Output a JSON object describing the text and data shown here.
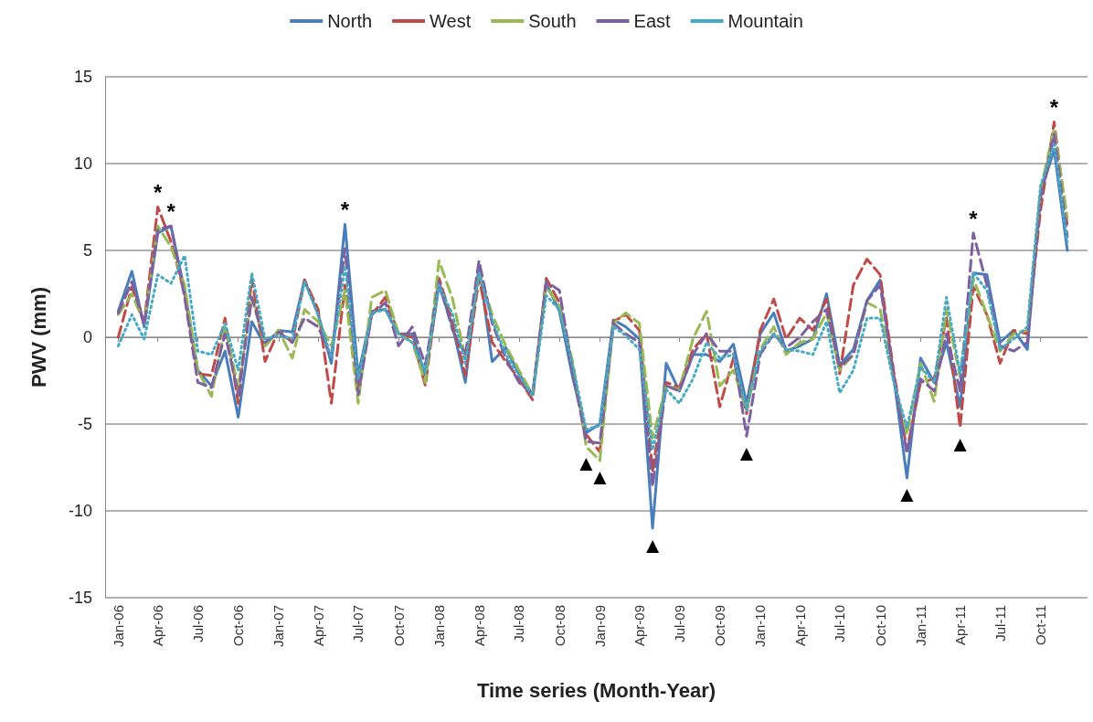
{
  "chart_data": {
    "type": "line",
    "xlabel": "Time series (Month-Year)",
    "ylabel": "PWV (mm)",
    "x": [
      "2006-01",
      "2006-02",
      "2006-03",
      "2006-04",
      "2006-05",
      "2006-06",
      "2006-07",
      "2006-08",
      "2006-09",
      "2006-10",
      "2006-11",
      "2006-12",
      "2007-01",
      "2007-02",
      "2007-03",
      "2007-04",
      "2007-05",
      "2007-06",
      "2007-07",
      "2007-08",
      "2007-09",
      "2007-10",
      "2007-11",
      "2007-12",
      "2008-01",
      "2008-02",
      "2008-03",
      "2008-04",
      "2008-05",
      "2008-06",
      "2008-07",
      "2008-08",
      "2008-09",
      "2008-10",
      "2008-11",
      "2008-12",
      "2009-01",
      "2009-02",
      "2009-03",
      "2009-04",
      "2009-05",
      "2009-06",
      "2009-07",
      "2009-08",
      "2009-09",
      "2009-10",
      "2009-11",
      "2009-12",
      "2010-01",
      "2010-02",
      "2010-03",
      "2010-04",
      "2010-05",
      "2010-06",
      "2010-07",
      "2010-08",
      "2010-09",
      "2010-10",
      "2010-11",
      "2010-12",
      "2011-01",
      "2011-02",
      "2011-03",
      "2011-04",
      "2011-05",
      "2011-06",
      "2011-07",
      "2011-08",
      "2011-09",
      "2011-10",
      "2011-11",
      "2011-12"
    ],
    "series": [
      {
        "name": "North",
        "color": "#4a7ebb",
        "line_style": "solid",
        "values": [
          1.5,
          3.8,
          0.6,
          6.0,
          6.4,
          2.7,
          -1.9,
          -2.8,
          -0.8,
          -4.6,
          0.9,
          -0.5,
          0.4,
          0.3,
          3.3,
          1.3,
          -1.5,
          6.5,
          -2.2,
          1.5,
          1.6,
          0.2,
          0.2,
          -2.2,
          3.0,
          0.6,
          -2.6,
          4.1,
          -1.4,
          -0.6,
          -2.1,
          -3.3,
          3.1,
          1.5,
          -2.4,
          -5.5,
          -5.0,
          1.0,
          0.6,
          -0.1,
          -11.0,
          -1.5,
          -3.1,
          -1.0,
          -1.0,
          -1.4,
          -0.4,
          -3.8,
          0.2,
          1.4,
          -0.8,
          -0.5,
          -0.1,
          2.5,
          -1.6,
          -0.7,
          2.1,
          3.3,
          -2.3,
          -8.1,
          -1.2,
          -2.6,
          -0.3,
          -4.0,
          3.7,
          3.6,
          -0.3,
          0.4,
          -0.7,
          8.3,
          10.8,
          5.0
        ]
      },
      {
        "name": "West",
        "color": "#be4b48",
        "line_style": "dashed",
        "values": [
          0.0,
          2.9,
          0.9,
          7.5,
          5.5,
          2.5,
          -2.1,
          -2.2,
          1.1,
          -3.8,
          3.4,
          -1.4,
          0.4,
          -0.3,
          3.3,
          1.6,
          -3.8,
          3.0,
          -2.9,
          1.3,
          2.3,
          0.2,
          0.0,
          -2.8,
          3.4,
          0.9,
          -2.2,
          3.4,
          -0.3,
          -1.4,
          -2.4,
          -3.6,
          3.4,
          2.0,
          -1.9,
          -5.6,
          -6.6,
          0.9,
          1.3,
          0.4,
          -7.7,
          -2.6,
          -2.9,
          -0.7,
          0.2,
          -4.0,
          -1.2,
          -4.4,
          0.4,
          2.2,
          -0.1,
          1.1,
          0.4,
          2.2,
          -2.1,
          3.0,
          4.5,
          3.6,
          -2.0,
          -6.5,
          -2.6,
          -2.4,
          1.1,
          -5.2,
          2.9,
          1.3,
          -1.5,
          0.4,
          0.2,
          7.3,
          12.4,
          6.4
        ]
      },
      {
        "name": "South",
        "color": "#98b954",
        "line_style": "dashed",
        "values": [
          1.3,
          2.5,
          0.8,
          6.4,
          5.2,
          3.0,
          -1.9,
          -3.4,
          0.6,
          -2.9,
          2.3,
          -0.5,
          0.4,
          -1.2,
          1.6,
          0.9,
          -0.5,
          2.7,
          -3.8,
          2.3,
          2.7,
          0.2,
          -0.3,
          -2.6,
          4.4,
          2.2,
          -1.2,
          3.7,
          1.3,
          -0.5,
          -1.9,
          -3.3,
          2.9,
          1.8,
          -1.5,
          -6.3,
          -7.1,
          0.8,
          1.4,
          0.8,
          -5.8,
          -2.8,
          -3.0,
          -0.1,
          1.5,
          -2.8,
          -1.9,
          -4.2,
          -0.7,
          0.6,
          -1.0,
          -0.3,
          -0.1,
          1.4,
          -1.9,
          -1.0,
          2.0,
          1.6,
          -2.5,
          -5.6,
          -1.5,
          -3.7,
          1.6,
          -2.3,
          3.4,
          1.3,
          -0.8,
          0.2,
          0.4,
          8.5,
          12.0,
          6.9
        ]
      },
      {
        "name": "East",
        "color": "#7d60a0",
        "line_style": "dashed",
        "values": [
          1.4,
          3.2,
          0.7,
          6.2,
          6.4,
          2.3,
          -2.6,
          -2.9,
          0.2,
          -3.3,
          2.3,
          -0.3,
          0.3,
          -0.3,
          1.1,
          0.6,
          -1.2,
          5.1,
          -3.3,
          1.3,
          2.0,
          -0.5,
          0.6,
          -1.6,
          3.2,
          0.4,
          -1.0,
          4.4,
          0.8,
          -1.2,
          -2.6,
          -3.3,
          3.2,
          2.7,
          -2.1,
          -6.0,
          -6.1,
          0.8,
          0.2,
          -0.3,
          -8.6,
          -2.8,
          -3.1,
          -1.0,
          0.2,
          -0.8,
          -0.8,
          -5.7,
          -1.0,
          0.2,
          -0.6,
          0.0,
          0.9,
          1.6,
          -1.7,
          -1.0,
          2.1,
          3.0,
          -2.2,
          -6.7,
          -2.4,
          -3.1,
          0.2,
          -3.1,
          6.0,
          3.0,
          -0.5,
          -0.8,
          -0.3,
          8.0,
          11.7,
          5.8
        ]
      },
      {
        "name": "Mountain",
        "color": "#46aac5",
        "line_style": "dotted",
        "values": [
          -0.5,
          1.3,
          -0.1,
          3.6,
          3.1,
          4.7,
          -0.8,
          -1.0,
          0.8,
          -1.9,
          3.7,
          -0.1,
          0.1,
          -0.1,
          3.2,
          1.3,
          -1.2,
          4.1,
          -2.4,
          1.4,
          1.6,
          0.2,
          -0.3,
          -2.0,
          3.0,
          1.3,
          -1.5,
          3.7,
          1.0,
          -1.0,
          -2.2,
          -3.4,
          2.4,
          1.6,
          -1.7,
          -5.3,
          -5.1,
          0.6,
          0.1,
          -0.7,
          -6.5,
          -3.0,
          -3.8,
          -2.4,
          -0.3,
          -1.2,
          -1.0,
          -4.2,
          -0.8,
          0.2,
          -0.7,
          -0.8,
          -1.0,
          0.9,
          -3.2,
          -1.9,
          1.1,
          1.1,
          -2.6,
          -5.2,
          -1.7,
          -2.6,
          2.3,
          -2.1,
          3.7,
          2.7,
          -0.7,
          -0.1,
          0.6,
          8.7,
          11.1,
          5.5
        ]
      }
    ],
    "xlim": [
      "2005-12-02",
      "2012-01-16"
    ],
    "xticks": [
      {
        "value": "2006-01",
        "label": "Jan-06"
      },
      {
        "value": "2006-04",
        "label": "Apr-06"
      },
      {
        "value": "2006-07",
        "label": "Jul-06"
      },
      {
        "value": "2006-10",
        "label": "Oct-06"
      },
      {
        "value": "2007-01",
        "label": "Jan-07"
      },
      {
        "value": "2007-04",
        "label": "Apr-07"
      },
      {
        "value": "2007-07",
        "label": "Jul-07"
      },
      {
        "value": "2007-10",
        "label": "Oct-07"
      },
      {
        "value": "2008-01",
        "label": "Jan-08"
      },
      {
        "value": "2008-04",
        "label": "Apr-08"
      },
      {
        "value": "2008-07",
        "label": "Jul-08"
      },
      {
        "value": "2008-10",
        "label": "Oct-08"
      },
      {
        "value": "2009-01",
        "label": "Jan-09"
      },
      {
        "value": "2009-04",
        "label": "Apr-09"
      },
      {
        "value": "2009-07",
        "label": "Jul-09"
      },
      {
        "value": "2009-10",
        "label": "Oct-09"
      },
      {
        "value": "2010-01",
        "label": "Jan-10"
      },
      {
        "value": "2010-04",
        "label": "Apr-10"
      },
      {
        "value": "2010-07",
        "label": "Jul-10"
      },
      {
        "value": "2010-10",
        "label": "Oct-10"
      },
      {
        "value": "2011-01",
        "label": "Jan-11"
      },
      {
        "value": "2011-04",
        "label": "Apr-11"
      },
      {
        "value": "2011-07",
        "label": "Jul-11"
      },
      {
        "value": "2011-10",
        "label": "Oct-11"
      }
    ],
    "ylim": [
      -15,
      15
    ],
    "yticks": [
      -15,
      -10,
      -5,
      0,
      5,
      10,
      15
    ],
    "grid": "y",
    "legend": "top",
    "marker": "none",
    "annotations": [
      {
        "text": "*",
        "x": "2006-04",
        "y": 7.5
      },
      {
        "text": "*",
        "x": "2006-05",
        "y": 6.4
      },
      {
        "text": "*",
        "x": "2007-06",
        "y": 6.5
      },
      {
        "text": "*",
        "x": "2011-05",
        "y": 6.0
      },
      {
        "text": "*",
        "x": "2011-11",
        "y": 12.4
      },
      {
        "text": "▲",
        "x": "2008-12",
        "y": -6.3
      },
      {
        "text": "▲",
        "x": "2009-01",
        "y": -7.1
      },
      {
        "text": "▲",
        "x": "2009-05",
        "y": -11.0
      },
      {
        "text": "▲",
        "x": "2009-12",
        "y": -5.7
      },
      {
        "text": "▲",
        "x": "2010-12",
        "y": -8.1
      },
      {
        "text": "▲",
        "x": "2011-04",
        "y": -5.2
      }
    ]
  }
}
